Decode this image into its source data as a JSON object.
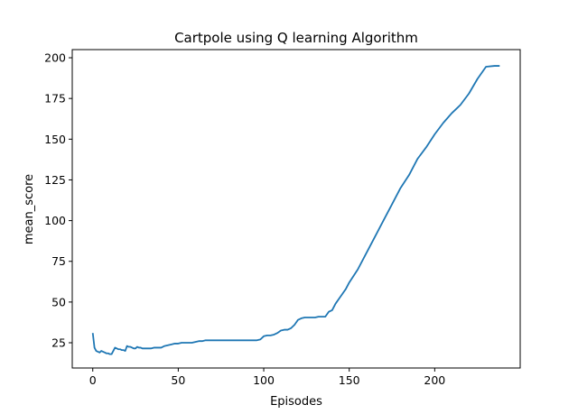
{
  "chart_data": {
    "type": "line",
    "title": "Cartpole using Q learning Algorithm",
    "xlabel": "Episodes",
    "ylabel": "mean_score",
    "xlim": [
      -12,
      250
    ],
    "ylim": [
      9.5,
      205
    ],
    "xticks": [
      0,
      50,
      100,
      150,
      200
    ],
    "yticks": [
      25,
      50,
      75,
      100,
      125,
      150,
      175,
      200
    ],
    "grid": false,
    "line_color": "#1f77b4",
    "series": [
      {
        "x": [
          0,
          1,
          2,
          3,
          4,
          5,
          6,
          7,
          8,
          9,
          10,
          11,
          12,
          13,
          14,
          15,
          16,
          17,
          18,
          19,
          20,
          21,
          22,
          23,
          24,
          25,
          26,
          27,
          28,
          29,
          30,
          32,
          34,
          36,
          38,
          40,
          42,
          44,
          46,
          48,
          50,
          52,
          54,
          56,
          58,
          60,
          62,
          64,
          66,
          68,
          70,
          72,
          74,
          76,
          78,
          80,
          82,
          84,
          86,
          88,
          90,
          92,
          94,
          96,
          98,
          100,
          102,
          104,
          106,
          108,
          110,
          112,
          114,
          116,
          118,
          120,
          122,
          124,
          126,
          128,
          130,
          132,
          134,
          136,
          138,
          140,
          142,
          144,
          146,
          148,
          150,
          155,
          160,
          165,
          170,
          175,
          180,
          185,
          190,
          195,
          200,
          205,
          210,
          215,
          220,
          225,
          230,
          235,
          238
        ],
        "y": [
          31,
          22,
          20,
          19.5,
          19,
          20,
          19.5,
          19,
          18.5,
          18.5,
          18,
          18,
          20,
          22,
          21.5,
          21,
          21,
          20.5,
          20.5,
          20,
          23,
          22.5,
          22.5,
          22,
          21.5,
          21.5,
          22.5,
          22,
          22,
          21.5,
          21.5,
          21.5,
          21.5,
          22,
          22,
          22,
          23,
          23.5,
          24,
          24.5,
          24.5,
          25,
          25,
          25,
          25,
          25.5,
          26,
          26,
          26.5,
          26.5,
          26.5,
          26.5,
          26.5,
          26.5,
          26.5,
          26.5,
          26.5,
          26.5,
          26.5,
          26.5,
          26.5,
          26.5,
          26.5,
          26.5,
          27,
          29,
          29.5,
          29.5,
          30,
          31,
          32.5,
          33,
          33,
          34,
          36,
          39,
          40,
          40.5,
          40.5,
          40.5,
          40.5,
          41,
          41,
          41,
          44,
          45,
          49,
          52,
          55,
          58,
          62,
          70,
          80,
          90,
          100,
          110,
          120,
          128,
          138,
          145,
          153,
          160,
          166,
          171,
          178,
          187,
          194.5,
          195,
          195
        ]
      }
    ]
  }
}
